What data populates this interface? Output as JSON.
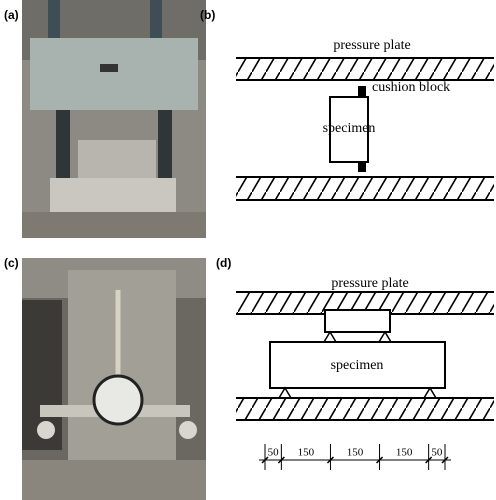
{
  "panels": [
    {
      "label": "(a)"
    },
    {
      "label": "(b)",
      "texts": {
        "plate": "pressure plate",
        "cushion": "cushion block",
        "specimen": "specimen"
      }
    },
    {
      "label": "(c)"
    },
    {
      "label": "(d)",
      "texts": {
        "plate": "pressure plate",
        "specimen": "specimen"
      },
      "dimensions": [
        50,
        150,
        150,
        150,
        50
      ]
    }
  ]
}
